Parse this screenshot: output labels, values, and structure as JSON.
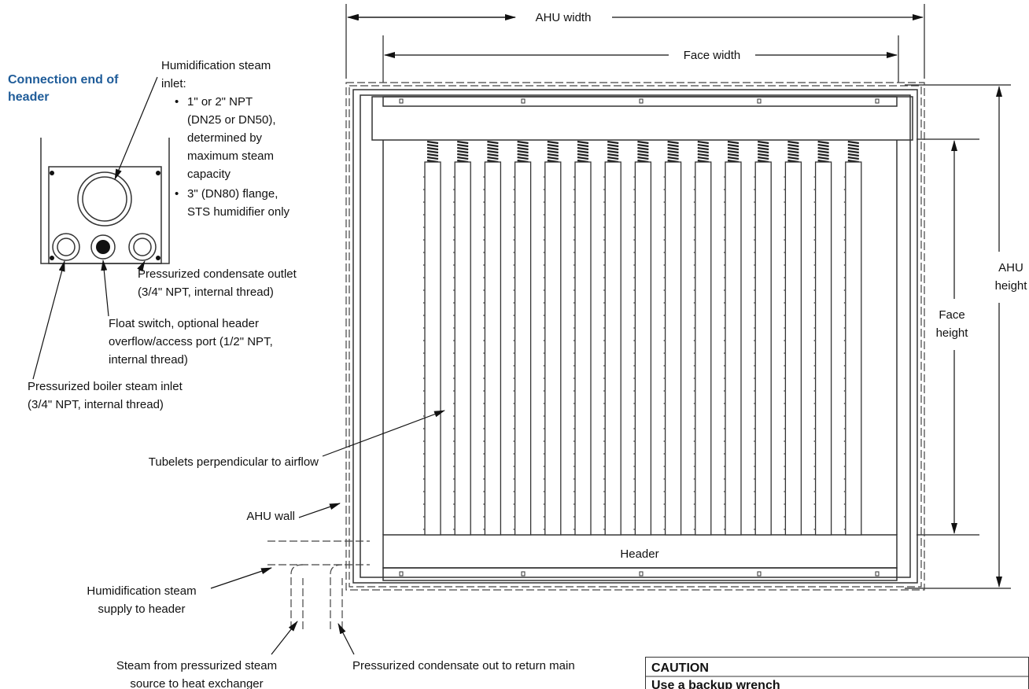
{
  "dimensions": {
    "ahu_width": "AHU width",
    "face_width": "Face width",
    "ahu_height": [
      "AHU",
      "height"
    ],
    "face_height": [
      "Face",
      "height"
    ]
  },
  "inset": {
    "title": [
      "Connection end of",
      "header"
    ],
    "steam_inlet": {
      "heading": [
        "Humidification steam",
        "inlet:"
      ],
      "bullets": [
        [
          "1\" or 2\" NPT",
          "(DN25 or DN50),",
          "determined by",
          "maximum steam",
          "capacity"
        ],
        [
          "3\" (DN80) flange,",
          "STS humidifier only"
        ]
      ]
    },
    "condensate_outlet": [
      "Pressurized condensate outlet",
      "(3/4\" NPT, internal thread)"
    ],
    "float_switch": [
      "Float switch, optional header",
      "overflow/access port (1/2\" NPT,",
      "internal thread)"
    ],
    "boiler_inlet": [
      "Pressurized boiler steam inlet",
      "(3/4\" NPT, internal thread)"
    ]
  },
  "callouts": {
    "tubelets": "Tubelets perpendicular to airflow",
    "ahu_wall": "AHU wall",
    "steam_supply": [
      "Humidification steam",
      "supply to header"
    ],
    "steam_source": [
      "Steam from pressurized steam",
      "source to heat exchanger"
    ],
    "condensate_return": "Pressurized condensate out to return main"
  },
  "header": "Header",
  "caution": {
    "title": "CAUTION",
    "text": "Use a backup wrench"
  }
}
